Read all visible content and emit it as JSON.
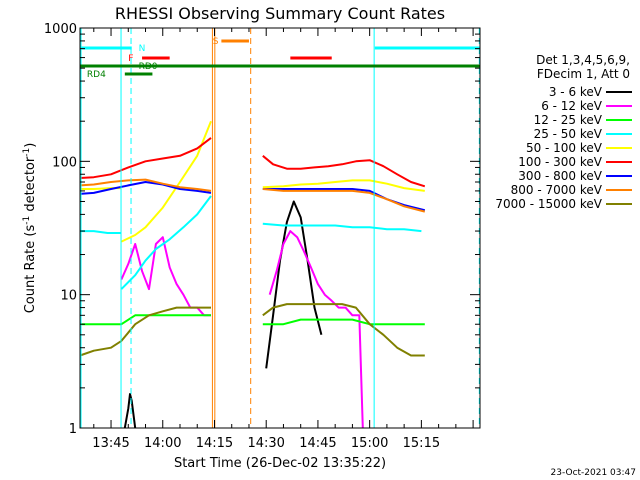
{
  "chart_data": {
    "type": "line",
    "title": "RHESSI Observing Summary Count Rates",
    "xlabel": "Start Time (26-Dec-02 13:35:22)",
    "ylabel": "Count Rate (s⁻¹ detector⁻¹)",
    "ylabel_main": "Count Rate (s",
    "ylabel_mid": " detector",
    "ylabel_end": ")",
    "ylabel_sup": "-1",
    "yscale": "log",
    "ylim": [
      1,
      1000
    ],
    "xlim_min": [
      36,
      152
    ],
    "x_ticks_min": [
      45,
      60,
      75,
      90,
      105,
      120,
      135,
      150
    ],
    "x_tick_labels": [
      "13:45",
      "14:00",
      "14:15",
      "14:30",
      "14:45",
      "15:00",
      "15:15"
    ],
    "x_tick_label_min": [
      45,
      60,
      75,
      90,
      105,
      120,
      135
    ],
    "y_ticks": [
      1,
      10,
      100,
      1000
    ],
    "y_tick_labels": [
      "1",
      "10",
      "100",
      "1000"
    ],
    "timestamp": "23-Oct-2021 03:47",
    "detector_info": [
      "Det 1,3,4,5,6,9,",
      "FDecim 1, Att 0"
    ],
    "series": [
      {
        "name": "3 - 6 keV",
        "color": "#000000",
        "segments": [
          {
            "x": [
              49,
              50,
              50.5,
              51,
              52
            ],
            "y": [
              1,
              1.4,
              1.8,
              1.6,
              1
            ]
          },
          {
            "x": [
              90,
              92,
              94,
              96,
              98,
              100,
              102,
              104,
              106
            ],
            "y": [
              2.8,
              7,
              18,
              35,
              50,
              38,
              18,
              8,
              5
            ]
          }
        ]
      },
      {
        "name": "6 - 12 keV",
        "color": "#ff00ff",
        "segments": [
          {
            "x": [
              48,
              50,
              52,
              54,
              56,
              58,
              60,
              62,
              64,
              66,
              68,
              70,
              72,
              74
            ],
            "y": [
              13,
              17,
              24,
              15,
              11,
              24,
              27,
              16,
              12,
              10,
              8,
              8,
              7,
              7
            ]
          },
          {
            "x": [
              91,
              93,
              95,
              97,
              99,
              101,
              103,
              105,
              107,
              109,
              111,
              113,
              115,
              117,
              118
            ],
            "y": [
              10,
              15,
              24,
              30,
              27,
              21,
              16,
              12,
              10,
              9,
              8,
              8,
              7,
              7,
              1
            ]
          }
        ]
      },
      {
        "name": "12 - 25 keV",
        "color": "#00ff00",
        "segments": [
          {
            "x": [
              36,
              40,
              45,
              48,
              52,
              56,
              60,
              64,
              68,
              72,
              74
            ],
            "y": [
              6,
              6,
              6,
              6,
              7,
              7,
              7,
              7,
              7,
              7,
              7
            ]
          },
          {
            "x": [
              89,
              95,
              100,
              105,
              110,
              115,
              120,
              125,
              130,
              136
            ],
            "y": [
              6,
              6,
              6.5,
              6.5,
              6.5,
              6.5,
              6,
              6,
              6,
              6
            ]
          }
        ]
      },
      {
        "name": "25 - 50 keV",
        "color": "#00ffff",
        "segments": [
          {
            "x": [
              36,
              40,
              44,
              47,
              48
            ],
            "y": [
              30,
              30,
              29,
              29,
              29
            ]
          },
          {
            "x": [
              48,
              52,
              55,
              58,
              62,
              66,
              70,
              74
            ],
            "y": [
              11,
              14,
              18,
              22,
              26,
              32,
              40,
              55
            ]
          },
          {
            "x": [
              89,
              95,
              100,
              105,
              110,
              115,
              120,
              125,
              130,
              135
            ],
            "y": [
              34,
              33,
              33,
              33,
              33,
              32,
              32,
              31,
              31,
              30
            ]
          }
        ]
      },
      {
        "name": "50 - 100 keV",
        "color": "#ffff00",
        "segments": [
          {
            "x": [
              36,
              40,
              45,
              48
            ],
            "y": [
              62,
              62,
              63,
              63
            ]
          },
          {
            "x": [
              48,
              52,
              55,
              60,
              65,
              70,
              74
            ],
            "y": [
              25,
              28,
              32,
              45,
              70,
              110,
              200
            ]
          },
          {
            "x": [
              89,
              95,
              100,
              105,
              110,
              115,
              120,
              125,
              130,
              136
            ],
            "y": [
              64,
              65,
              67,
              68,
              70,
              72,
              72,
              68,
              63,
              60
            ]
          }
        ]
      },
      {
        "name": "100 - 300 keV",
        "color": "#ff0000",
        "segments": [
          {
            "x": [
              36,
              40,
              45,
              50,
              55,
              60,
              65,
              70,
              74
            ],
            "y": [
              75,
              76,
              80,
              90,
              100,
              105,
              110,
              125,
              150
            ]
          },
          {
            "x": [
              89,
              92,
              96,
              100,
              104,
              108,
              112,
              116,
              120,
              124,
              128,
              132,
              136
            ],
            "y": [
              110,
              95,
              88,
              88,
              90,
              92,
              95,
              100,
              102,
              92,
              80,
              70,
              65
            ]
          }
        ]
      },
      {
        "name": "300 - 800 keV",
        "color": "#0000ff",
        "segments": [
          {
            "x": [
              36,
              40,
              45,
              50,
              55,
              60,
              65,
              70,
              74
            ],
            "y": [
              57,
              58,
              62,
              66,
              70,
              67,
              62,
              60,
              58
            ]
          },
          {
            "x": [
              89,
              95,
              100,
              105,
              110,
              115,
              120,
              125,
              130,
              136
            ],
            "y": [
              62,
              62,
              62,
              62,
              62,
              62,
              60,
              52,
              47,
              43
            ]
          }
        ]
      },
      {
        "name": "800 - 7000 keV",
        "color": "#ff8000",
        "segments": [
          {
            "x": [
              36,
              40,
              45,
              50,
              55,
              60,
              65,
              70,
              74
            ],
            "y": [
              66,
              67,
              70,
              72,
              73,
              68,
              64,
              62,
              60
            ]
          },
          {
            "x": [
              89,
              95,
              100,
              105,
              110,
              115,
              120,
              125,
              130,
              136
            ],
            "y": [
              62,
              60,
              60,
              60,
              60,
              60,
              58,
              52,
              46,
              42
            ]
          }
        ]
      },
      {
        "name": "7000 - 15000 keV",
        "color": "#808000",
        "segments": [
          {
            "x": [
              36,
              40,
              45,
              48,
              52,
              56,
              60,
              64,
              68,
              72,
              74
            ],
            "y": [
              3.5,
              3.8,
              4,
              4.5,
              6,
              7,
              7.5,
              8,
              8,
              8,
              8
            ]
          },
          {
            "x": [
              89,
              92,
              96,
              100,
              104,
              108,
              112,
              116,
              120,
              124,
              128,
              132,
              136
            ],
            "y": [
              7,
              8,
              8.5,
              8.5,
              8.5,
              8.5,
              8.5,
              8,
              6,
              5,
              4,
              3.5,
              3.5
            ]
          }
        ]
      }
    ],
    "flags": [
      {
        "name": "N",
        "color": "#00ffff",
        "label_x": 53,
        "segments": [
          [
            36,
            51
          ],
          [
            121.5,
            152
          ]
        ]
      },
      {
        "name": "F",
        "color": "#ff0000",
        "label_x": 50,
        "segments": [
          [
            54,
            62
          ],
          [
            97,
            109
          ]
        ]
      },
      {
        "name": "S",
        "color": "#ff8000",
        "label_x": 74.5,
        "segments": [
          [
            77,
            85
          ]
        ]
      },
      {
        "name": "RD0",
        "color": "#008000",
        "label_x": 53,
        "segments": [
          [
            36,
            152
          ]
        ]
      },
      {
        "name": "RD4",
        "color": "#008000",
        "label_x": 38,
        "segments": [
          [
            49,
            57
          ]
        ]
      }
    ],
    "vlines": [
      {
        "x": 36.3,
        "color": "#00ffff",
        "dashed": false
      },
      {
        "x": 47.9,
        "color": "#00ffff",
        "dashed": false
      },
      {
        "x": 50.8,
        "color": "#00ffff",
        "dashed": true
      },
      {
        "x": 74.4,
        "color": "#ff8000",
        "dashed": false
      },
      {
        "x": 75.1,
        "color": "#ff8000",
        "dashed": false
      },
      {
        "x": 85.5,
        "color": "#ff8000",
        "dashed": true
      },
      {
        "x": 121.3,
        "color": "#00ffff",
        "dashed": false
      },
      {
        "x": 151.8,
        "color": "#00ffff",
        "dashed": true
      }
    ]
  }
}
